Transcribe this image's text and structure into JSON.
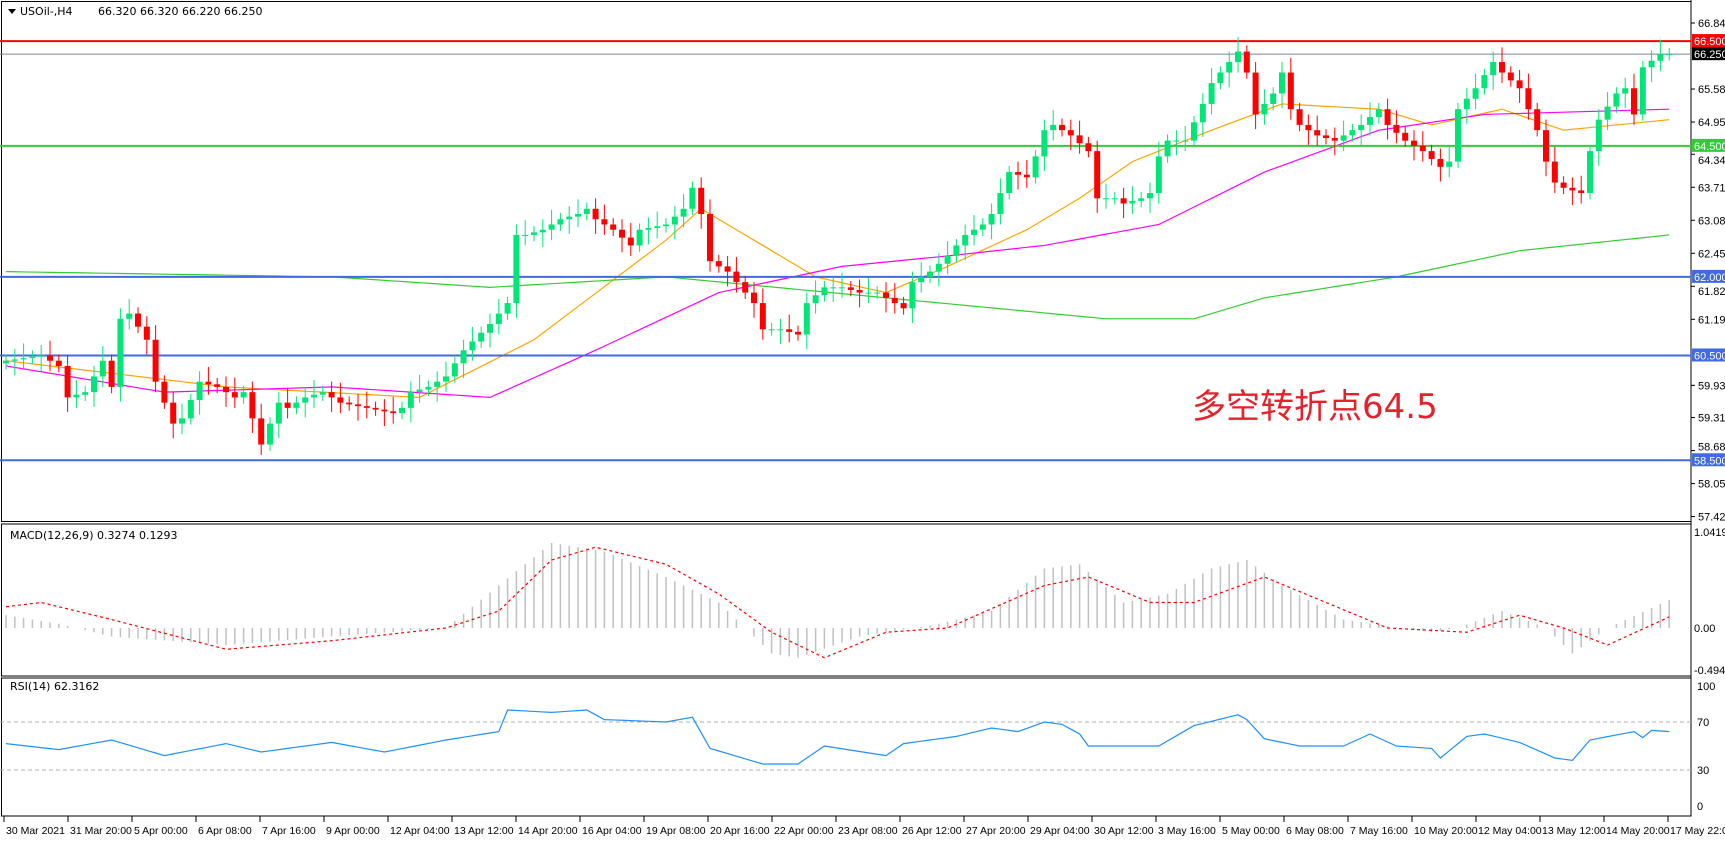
{
  "header": {
    "symbol": "USOil-,H4",
    "ohlc": "66.320 66.320 66.220 66.250"
  },
  "annotation": "多空转折点64.5",
  "colors": {
    "bull": "#00e676",
    "bear": "#ff0000",
    "ma_fast": "#ffa500",
    "ma_mid": "#ff00ff",
    "ma_slow": "#32cd32",
    "macd_hist": "#c0c0c0",
    "macd_signal": "#ff0000",
    "rsi": "#1e90ff",
    "level_red": "#ff0000",
    "level_green": "#32cd32",
    "level_blue": "#4169e1",
    "price_line": "#778899"
  },
  "price_axis": {
    "min": 57.425,
    "max": 66.845,
    "ticks": [
      "66.845",
      "65.585",
      "64.955",
      "64.340",
      "63.710",
      "63.080",
      "62.450",
      "61.820",
      "61.190",
      "59.930",
      "59.315",
      "58.685",
      "58.055",
      "57.425"
    ]
  },
  "levels": [
    {
      "price": 66.5,
      "label": "66.500",
      "color": "#ff0000"
    },
    {
      "price": 66.25,
      "label": "66.250",
      "color": "#000000",
      "kind": "bid"
    },
    {
      "price": 64.5,
      "label": "64.500",
      "color": "#32cd32"
    },
    {
      "price": 62.0,
      "label": "62.000",
      "color": "#4169e1"
    },
    {
      "price": 60.5,
      "label": "60.500",
      "color": "#4169e1"
    },
    {
      "price": 58.5,
      "label": "58.500",
      "color": "#4169e1"
    }
  ],
  "time_axis": [
    "30 Mar 2021",
    "31 Mar 20:00",
    "5 Apr 00:00",
    "6 Apr 08:00",
    "7 Apr 16:00",
    "9 Apr 00:00",
    "12 Apr 04:00",
    "13 Apr 12:00",
    "14 Apr 20:00",
    "16 Apr 04:00",
    "19 Apr 08:00",
    "20 Apr 16:00",
    "22 Apr 00:00",
    "23 Apr 08:00",
    "26 Apr 12:00",
    "27 Apr 20:00",
    "29 Apr 04:00",
    "30 Apr 12:00",
    "3 May 16:00",
    "5 May 00:00",
    "6 May 08:00",
    "7 May 16:00",
    "10 May 20:00",
    "12 May 04:00",
    "13 May 12:00",
    "14 May 20:00",
    "17 May 22:00"
  ],
  "chart_data": [
    {
      "type": "candlestick",
      "title": "USOil-,H4",
      "bars": 190,
      "closes": [
        [
          0,
          60.4
        ],
        [
          4,
          60.5
        ],
        [
          6,
          60.3
        ],
        [
          7,
          59.7
        ],
        [
          9,
          59.8
        ],
        [
          11,
          60.4
        ],
        [
          12,
          59.9
        ],
        [
          13,
          61.2
        ],
        [
          14,
          61.3
        ],
        [
          16,
          60.8
        ],
        [
          17,
          60.0
        ],
        [
          19,
          59.2
        ],
        [
          20,
          59.3
        ],
        [
          22,
          60.0
        ],
        [
          24,
          59.9
        ],
        [
          26,
          59.7
        ],
        [
          27,
          59.8
        ],
        [
          29,
          58.8
        ],
        [
          31,
          59.6
        ],
        [
          32,
          59.5
        ],
        [
          34,
          59.7
        ],
        [
          36,
          59.8
        ],
        [
          38,
          59.6
        ],
        [
          41,
          59.5
        ],
        [
          44,
          59.4
        ],
        [
          45,
          59.5
        ],
        [
          46,
          59.8
        ],
        [
          48,
          59.9
        ],
        [
          50,
          60.1
        ],
        [
          52,
          60.6
        ],
        [
          55,
          61.1
        ],
        [
          57,
          61.5
        ],
        [
          58,
          62.8
        ],
        [
          59,
          62.8
        ],
        [
          61,
          62.9
        ],
        [
          63,
          63.1
        ],
        [
          65,
          63.2
        ],
        [
          66,
          63.3
        ],
        [
          67,
          63.1
        ],
        [
          69,
          62.9
        ],
        [
          71,
          62.6
        ],
        [
          72,
          62.9
        ],
        [
          75,
          63.0
        ],
        [
          77,
          63.3
        ],
        [
          78,
          63.7
        ],
        [
          79,
          63.2
        ],
        [
          80,
          62.3
        ],
        [
          82,
          62.1
        ],
        [
          83,
          61.9
        ],
        [
          85,
          61.5
        ],
        [
          86,
          61.0
        ],
        [
          88,
          61.0
        ],
        [
          90,
          60.9
        ],
        [
          91,
          61.5
        ],
        [
          93,
          61.8
        ],
        [
          95,
          61.8
        ],
        [
          97,
          61.7
        ],
        [
          99,
          61.7
        ],
        [
          101,
          61.5
        ],
        [
          102,
          61.4
        ],
        [
          103,
          61.9
        ],
        [
          105,
          62.1
        ],
        [
          107,
          62.4
        ],
        [
          109,
          62.8
        ],
        [
          111,
          63.0
        ],
        [
          112,
          63.2
        ],
        [
          114,
          64.0
        ],
        [
          116,
          63.9
        ],
        [
          117,
          64.3
        ],
        [
          118,
          64.8
        ],
        [
          119,
          64.9
        ],
        [
          121,
          64.7
        ],
        [
          123,
          64.4
        ],
        [
          124,
          63.5
        ],
        [
          126,
          63.5
        ],
        [
          127,
          63.4
        ],
        [
          129,
          63.5
        ],
        [
          130,
          63.6
        ],
        [
          131,
          64.3
        ],
        [
          132,
          64.6
        ],
        [
          134,
          64.6
        ],
        [
          136,
          65.3
        ],
        [
          137,
          65.7
        ],
        [
          139,
          66.1
        ],
        [
          140,
          66.3
        ],
        [
          141,
          65.9
        ],
        [
          142,
          65.1
        ],
        [
          144,
          65.5
        ],
        [
          145,
          65.9
        ],
        [
          146,
          65.2
        ],
        [
          147,
          64.9
        ],
        [
          149,
          64.7
        ],
        [
          151,
          64.6
        ],
        [
          152,
          64.7
        ],
        [
          154,
          64.9
        ],
        [
          156,
          65.2
        ],
        [
          157,
          64.9
        ],
        [
          159,
          64.6
        ],
        [
          161,
          64.4
        ],
        [
          163,
          64.1
        ],
        [
          164,
          64.2
        ],
        [
          165,
          65.2
        ],
        [
          167,
          65.6
        ],
        [
          169,
          66.1
        ],
        [
          170,
          65.9
        ],
        [
          172,
          65.6
        ],
        [
          174,
          64.8
        ],
        [
          175,
          64.2
        ],
        [
          176,
          63.8
        ],
        [
          177,
          63.7
        ],
        [
          179,
          63.6
        ],
        [
          180,
          64.4
        ],
        [
          181,
          65.0
        ],
        [
          183,
          65.5
        ],
        [
          184,
          65.6
        ],
        [
          185,
          65.1
        ],
        [
          186,
          66.0
        ],
        [
          188,
          66.25
        ],
        [
          189,
          66.25
        ]
      ],
      "moving_averages": [
        {
          "color": "#ffa500",
          "points": [
            [
              0,
              60.4
            ],
            [
              25,
              59.9
            ],
            [
              47,
              59.7
            ],
            [
              60,
              60.8
            ],
            [
              75,
              62.7
            ],
            [
              79,
              63.3
            ],
            [
              92,
              62.0
            ],
            [
              100,
              61.7
            ],
            [
              107,
              62.2
            ],
            [
              116,
              62.9
            ],
            [
              122,
              63.5
            ],
            [
              128,
              64.2
            ],
            [
              137,
              64.8
            ],
            [
              145,
              65.3
            ],
            [
              156,
              65.2
            ],
            [
              162,
              64.9
            ],
            [
              170,
              65.2
            ],
            [
              177,
              64.8
            ],
            [
              189,
              65.0
            ]
          ]
        },
        {
          "color": "#ff00ff",
          "points": [
            [
              0,
              60.3
            ],
            [
              18,
              59.8
            ],
            [
              37,
              59.9
            ],
            [
              55,
              59.7
            ],
            [
              67,
              60.6
            ],
            [
              81,
              61.7
            ],
            [
              95,
              62.2
            ],
            [
              107,
              62.4
            ],
            [
              118,
              62.6
            ],
            [
              131,
              63.0
            ],
            [
              143,
              64.0
            ],
            [
              156,
              64.8
            ],
            [
              168,
              65.1
            ],
            [
              189,
              65.2
            ]
          ]
        },
        {
          "color": "#32cd32",
          "points": [
            [
              0,
              62.1
            ],
            [
              37,
              62.0
            ],
            [
              55,
              61.8
            ],
            [
              75,
              62.0
            ],
            [
              100,
              61.6
            ],
            [
              125,
              61.2
            ],
            [
              135,
              61.2
            ],
            [
              143,
              61.6
            ],
            [
              158,
              62.0
            ],
            [
              172,
              62.5
            ],
            [
              189,
              62.8
            ]
          ]
        }
      ]
    },
    {
      "type": "bar",
      "title": "MACD(12,26,9) 0.3274 0.1293",
      "ylim": [
        -0.494,
        1.0419
      ],
      "ticks": [
        "1.0419",
        "0.00",
        "-0.494"
      ],
      "histogram": [
        [
          0,
          0.15
        ],
        [
          6,
          0.05
        ],
        [
          12,
          -0.1
        ],
        [
          25,
          -0.2
        ],
        [
          37,
          -0.1
        ],
        [
          50,
          0.0
        ],
        [
          56,
          0.5
        ],
        [
          62,
          1.0
        ],
        [
          68,
          0.9
        ],
        [
          75,
          0.6
        ],
        [
          81,
          0.3
        ],
        [
          87,
          -0.3
        ],
        [
          90,
          -0.35
        ],
        [
          97,
          -0.1
        ],
        [
          106,
          0.05
        ],
        [
          112,
          0.2
        ],
        [
          118,
          0.7
        ],
        [
          122,
          0.75
        ],
        [
          127,
          0.3
        ],
        [
          132,
          0.4
        ],
        [
          137,
          0.7
        ],
        [
          141,
          0.8
        ],
        [
          145,
          0.5
        ],
        [
          152,
          0.1
        ],
        [
          162,
          -0.05
        ],
        [
          165,
          0.0
        ],
        [
          170,
          0.2
        ],
        [
          175,
          0.0
        ],
        [
          178,
          -0.3
        ],
        [
          182,
          0.0
        ],
        [
          189,
          0.33
        ]
      ],
      "signal": [
        [
          0,
          0.25
        ],
        [
          4,
          0.3
        ],
        [
          12,
          0.1
        ],
        [
          25,
          -0.25
        ],
        [
          37,
          -0.15
        ],
        [
          50,
          0.0
        ],
        [
          56,
          0.2
        ],
        [
          62,
          0.8
        ],
        [
          67,
          0.95
        ],
        [
          75,
          0.75
        ],
        [
          81,
          0.4
        ],
        [
          87,
          -0.05
        ],
        [
          93,
          -0.35
        ],
        [
          100,
          -0.05
        ],
        [
          107,
          0.0
        ],
        [
          118,
          0.5
        ],
        [
          123,
          0.6
        ],
        [
          130,
          0.3
        ],
        [
          135,
          0.3
        ],
        [
          143,
          0.6
        ],
        [
          150,
          0.3
        ],
        [
          157,
          0.0
        ],
        [
          166,
          -0.05
        ],
        [
          172,
          0.15
        ],
        [
          177,
          0.0
        ],
        [
          182,
          -0.2
        ],
        [
          189,
          0.13
        ]
      ]
    },
    {
      "type": "line",
      "title": "RSI(14) 62.3162",
      "ylim": [
        0,
        100
      ],
      "ticks": [
        "100",
        "70",
        "30",
        "0"
      ],
      "levels": [
        70,
        30
      ],
      "values": [
        [
          0,
          52
        ],
        [
          6,
          47
        ],
        [
          12,
          55
        ],
        [
          18,
          42
        ],
        [
          25,
          52
        ],
        [
          29,
          45
        ],
        [
          37,
          53
        ],
        [
          43,
          45
        ],
        [
          50,
          55
        ],
        [
          56,
          62
        ],
        [
          57,
          80
        ],
        [
          62,
          78
        ],
        [
          66,
          80
        ],
        [
          68,
          72
        ],
        [
          75,
          70
        ],
        [
          78,
          74
        ],
        [
          80,
          48
        ],
        [
          86,
          35
        ],
        [
          90,
          35
        ],
        [
          93,
          50
        ],
        [
          100,
          42
        ],
        [
          102,
          52
        ],
        [
          108,
          58
        ],
        [
          112,
          65
        ],
        [
          115,
          62
        ],
        [
          118,
          70
        ],
        [
          120,
          68
        ],
        [
          122,
          60
        ],
        [
          123,
          50
        ],
        [
          131,
          50
        ],
        [
          135,
          67
        ],
        [
          140,
          76
        ],
        [
          141,
          72
        ],
        [
          143,
          56
        ],
        [
          147,
          50
        ],
        [
          152,
          50
        ],
        [
          155,
          60
        ],
        [
          158,
          50
        ],
        [
          162,
          48
        ],
        [
          163,
          40
        ],
        [
          166,
          58
        ],
        [
          168,
          60
        ],
        [
          172,
          53
        ],
        [
          176,
          40
        ],
        [
          178,
          38
        ],
        [
          180,
          55
        ],
        [
          185,
          62
        ],
        [
          186,
          57
        ],
        [
          187,
          63
        ],
        [
          189,
          62
        ]
      ]
    }
  ]
}
